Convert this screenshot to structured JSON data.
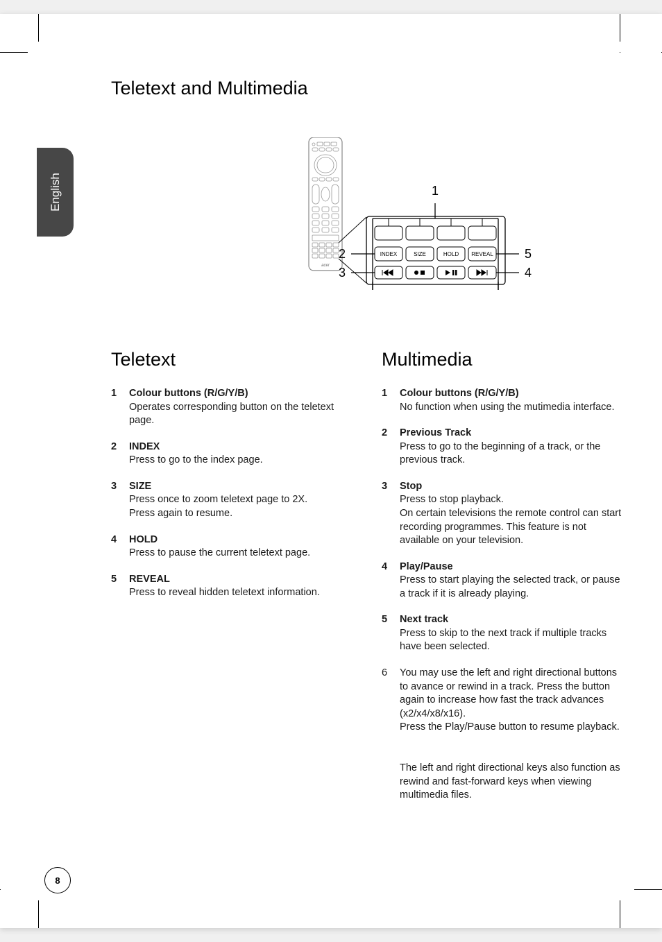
{
  "language_tab": "English",
  "page_number": "8",
  "main_title": "Teletext and Multimedia",
  "diagram": {
    "callouts": [
      "1",
      "2",
      "3",
      "4",
      "5"
    ],
    "button_labels": [
      "INDEX",
      "SIZE",
      "HOLD",
      "REVEAL"
    ],
    "brand": "acer",
    "colors": {
      "line": "#000000",
      "remote_fill": "#ffffff",
      "remote_stroke": "#7a7a7a",
      "text": "#000000"
    },
    "font_size_labels": 8,
    "font_size_callouts": 16
  },
  "sections": {
    "teletext": {
      "heading": "Teletext",
      "items": [
        {
          "num": "1",
          "num_bold": true,
          "title": "Colour buttons (R/G/Y/B)",
          "body": "Operates corresponding button on the teletext page."
        },
        {
          "num": "2",
          "num_bold": true,
          "title": "INDEX",
          "body": "Press to go to the index page."
        },
        {
          "num": "3",
          "num_bold": true,
          "title": "SIZE",
          "body": "Press once to zoom teletext page to 2X.\nPress again to resume."
        },
        {
          "num": "4",
          "num_bold": true,
          "title": "HOLD",
          "body": "Press to pause the current teletext page."
        },
        {
          "num": "5",
          "num_bold": true,
          "title": "REVEAL",
          "body": "Press to reveal hidden teletext information."
        }
      ]
    },
    "multimedia": {
      "heading": "Multimedia",
      "items": [
        {
          "num": "1",
          "num_bold": true,
          "title": "Colour buttons (R/G/Y/B)",
          "body": "No function when using the mutimedia interface."
        },
        {
          "num": "2",
          "num_bold": true,
          "title": "Previous Track",
          "body": "Press to go to the beginning of a track, or the previous track."
        },
        {
          "num": "3",
          "num_bold": true,
          "title": "Stop",
          "body": "Press to stop playback.\nOn certain televisions the remote control can start recording programmes. This feature is not available on your television."
        },
        {
          "num": "4",
          "num_bold": true,
          "title": "Play/Pause",
          "body": "Press to start playing the selected track, or pause a track if it is already playing."
        },
        {
          "num": "5",
          "num_bold": true,
          "title": "Next track",
          "body": "Press to skip to the next track if multiple tracks have been selected."
        },
        {
          "num": "6",
          "num_bold": false,
          "title": "",
          "body": "You may use the left and right directional buttons to avance or rewind in a track. Press the button again to increase how fast the track advances (x2/x4/x8/x16).\nPress the Play/Pause button to resume playback.\n\nThe left and right directional keys also function as rewind and fast-forward keys when viewing multimedia files."
        }
      ]
    }
  },
  "typography": {
    "body_fontsize": 14.5,
    "h1_fontsize": 27,
    "h2_fontsize": 27,
    "text_color": "#1a1a1a",
    "bg_color": "#ffffff"
  }
}
